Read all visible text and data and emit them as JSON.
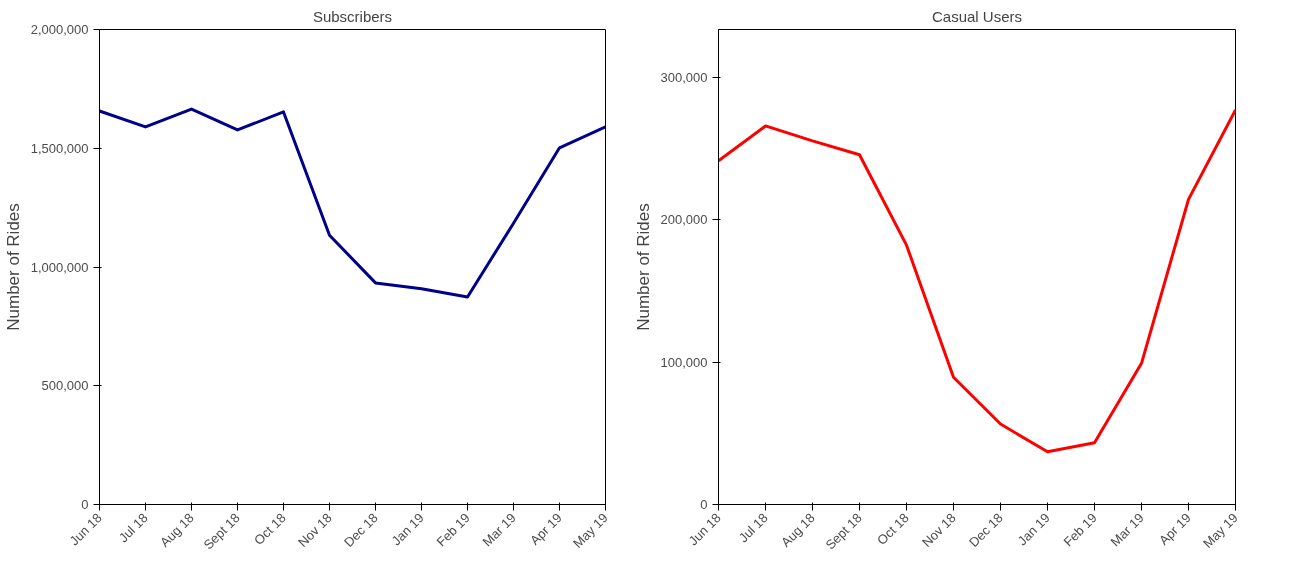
{
  "chart_data": [
    {
      "type": "line",
      "title": "Subscribers",
      "ylabel": "Number of Rides",
      "categories": [
        "Jun 18",
        "Jul 18",
        "Aug 18",
        "Sept 18",
        "Oct 18",
        "Nov 18",
        "Dec 18",
        "Jan 19",
        "Feb 19",
        "Mar 19",
        "Apr 19",
        "May 19"
      ],
      "series": [
        {
          "color": "#00008b",
          "values": [
            1657000,
            1590000,
            1665000,
            1577000,
            1653000,
            1134000,
            933000,
            908000,
            874000,
            1184000,
            1502000,
            1590000
          ]
        }
      ],
      "ylim": [
        0,
        2000000
      ],
      "yticks": [
        {
          "value": 0,
          "label": "0"
        },
        {
          "value": 500000,
          "label": "500,000"
        },
        {
          "value": 1000000,
          "label": "1,000,000"
        },
        {
          "value": 1500000,
          "label": "1,500,000"
        },
        {
          "value": 2000000,
          "label": "2,000,000"
        }
      ],
      "grid": false
    },
    {
      "type": "line",
      "title": "Casual Users",
      "ylabel": "Number of Rides",
      "categories": [
        "Jun 18",
        "Jul 18",
        "Aug 18",
        "Sept 18",
        "Oct 18",
        "Nov 18",
        "Dec 18",
        "Jan 19",
        "Feb 19",
        "Mar 19",
        "Apr 19",
        "May 19"
      ],
      "series": [
        {
          "color": "#ff0000",
          "values": [
            241400,
            265800,
            255300,
            245600,
            182100,
            89300,
            56500,
            37000,
            43300,
            99100,
            214200,
            277000
          ]
        }
      ],
      "ylim": [
        0,
        333500
      ],
      "yticks": [
        {
          "value": 0,
          "label": "0"
        },
        {
          "value": 100000,
          "label": "100,000"
        },
        {
          "value": 200000,
          "label": "200,000"
        },
        {
          "value": 300000,
          "label": "300,000"
        }
      ],
      "grid": false
    }
  ]
}
